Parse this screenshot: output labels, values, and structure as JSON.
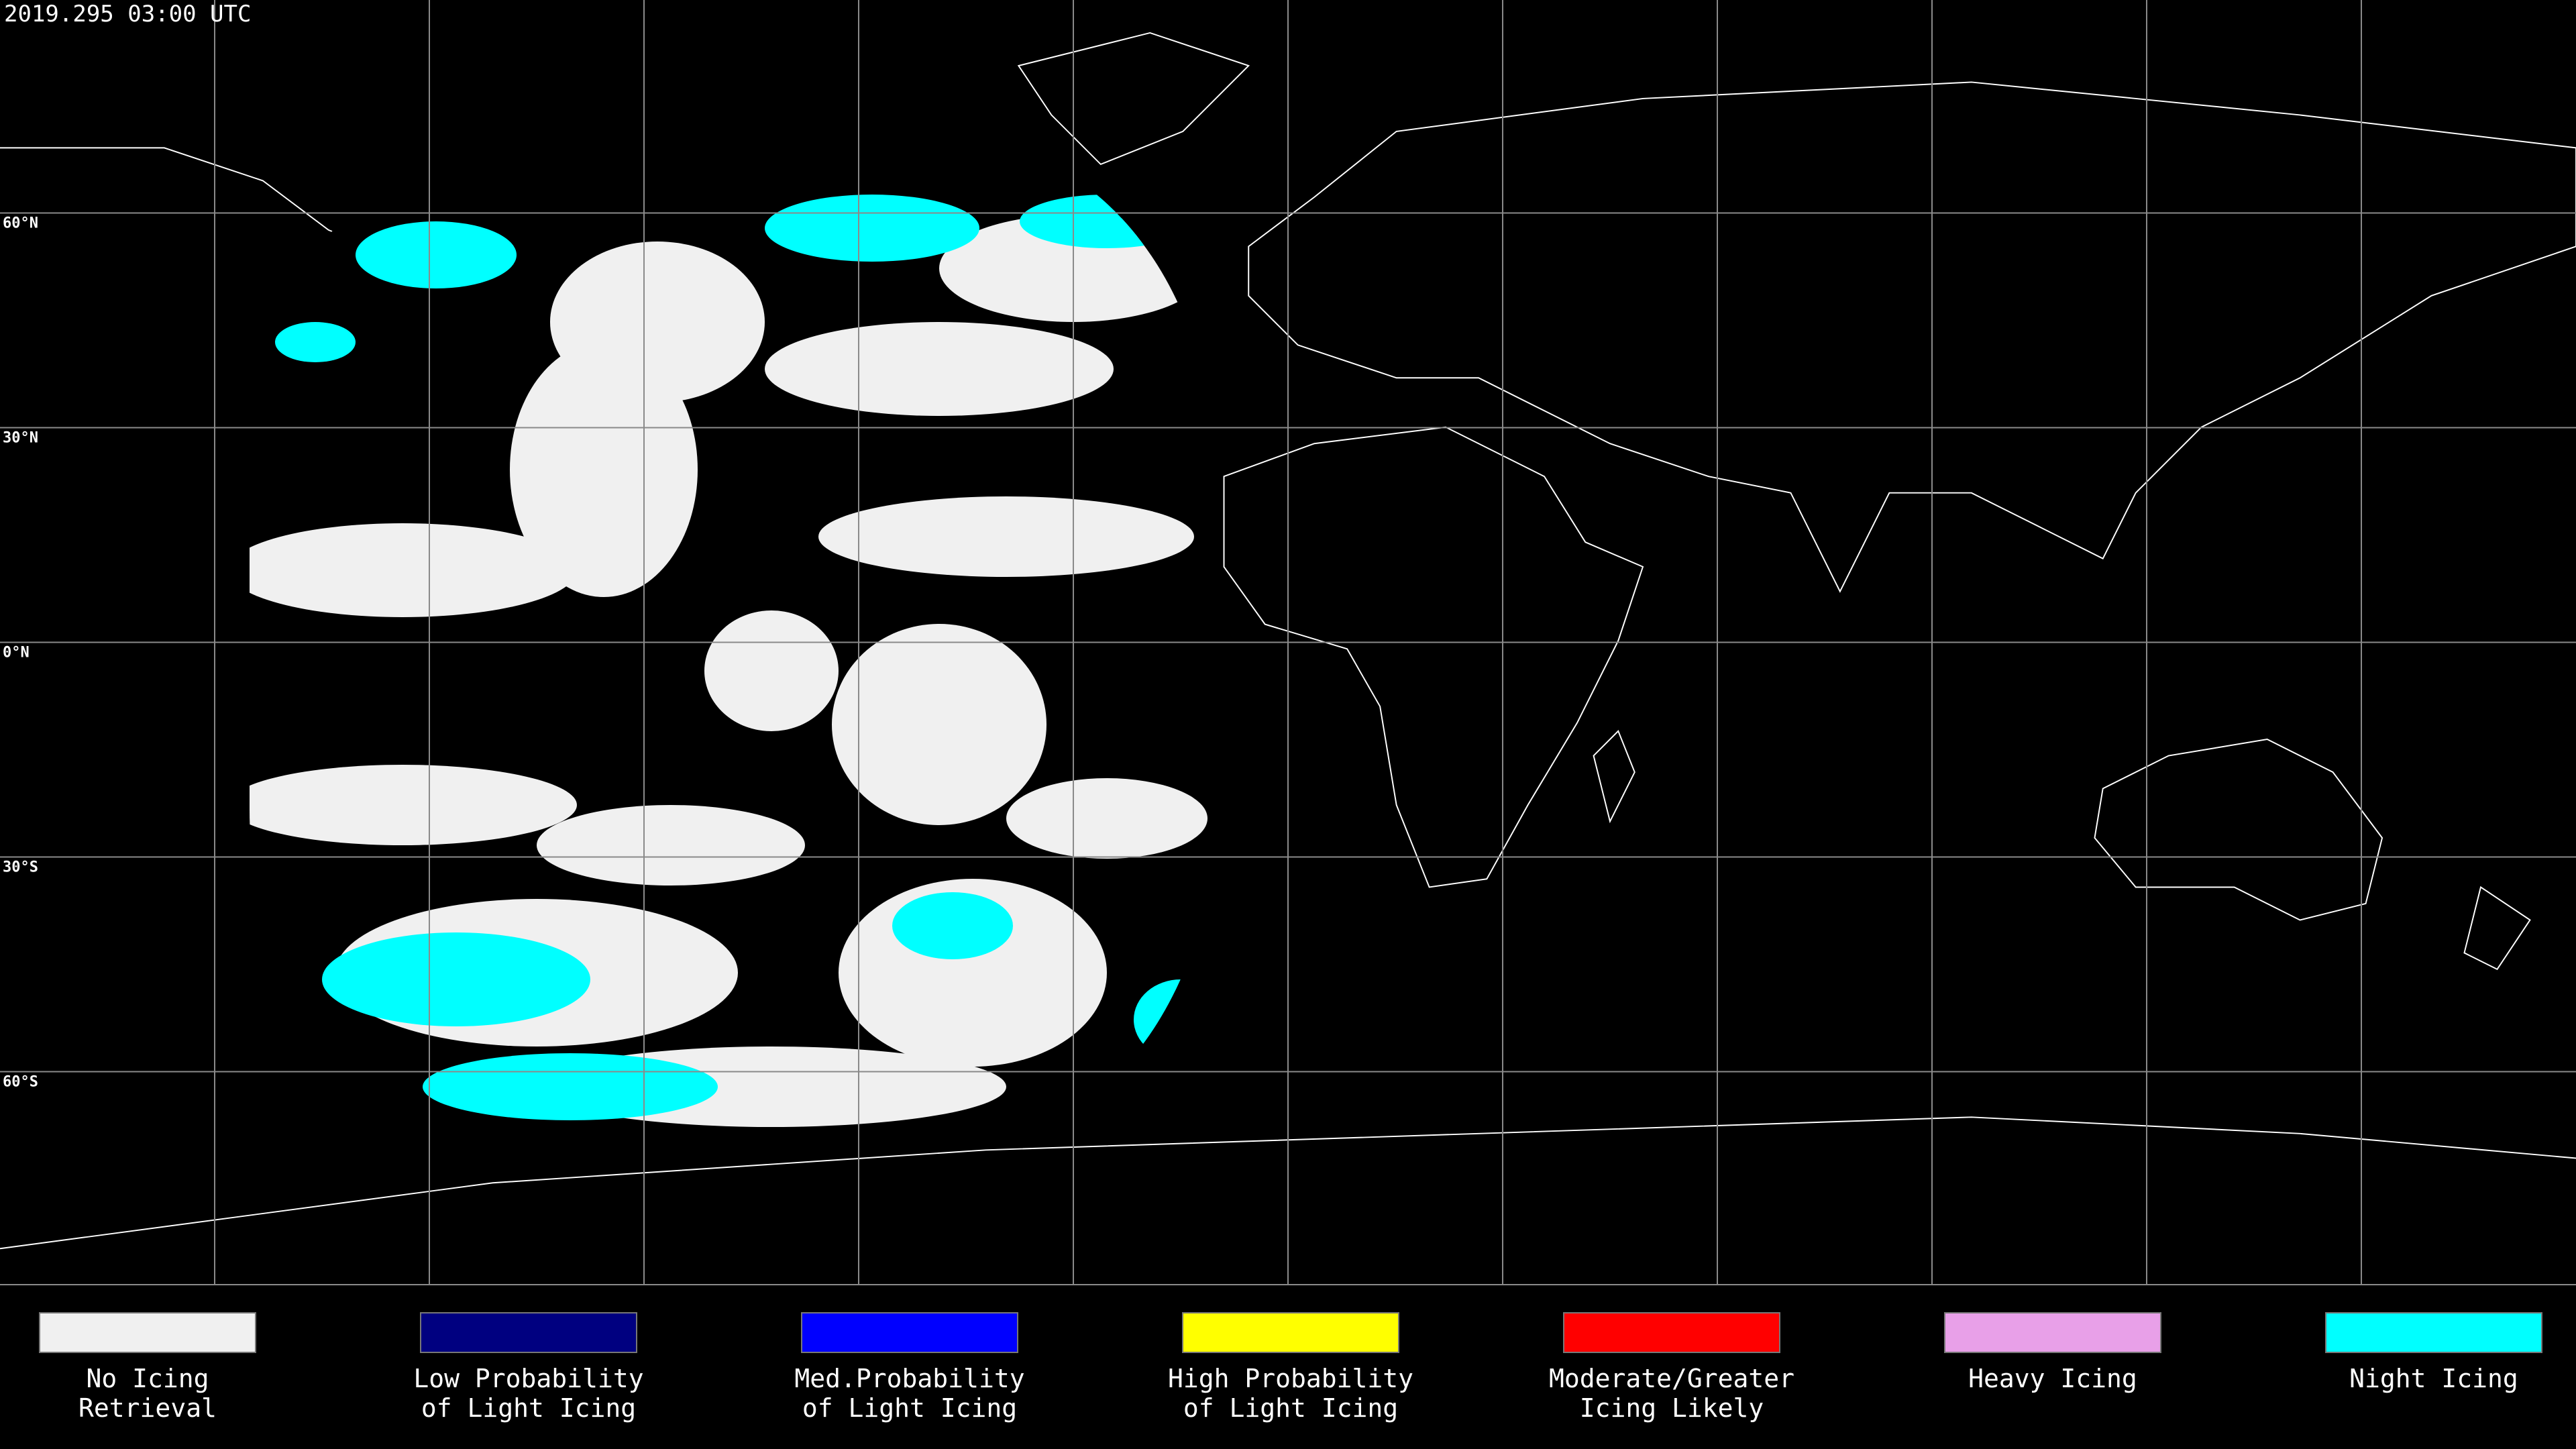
{
  "title": "2019.295 03:00 UTC",
  "lat_labels": [
    "60°N",
    "30°N",
    "0°N",
    "30°S",
    "60°S"
  ],
  "legend": [
    {
      "color": "#f0f0f0",
      "lines": [
        "No Icing",
        "Retrieval"
      ]
    },
    {
      "color": "#000080",
      "lines": [
        "Low Probability",
        "of Light Icing"
      ]
    },
    {
      "color": "#0000ff",
      "lines": [
        "Med.Probability",
        "of Light Icing"
      ]
    },
    {
      "color": "#ffff00",
      "lines": [
        "High Probability",
        "of Light Icing"
      ]
    },
    {
      "color": "#ff0000",
      "lines": [
        "Moderate/Greater",
        "Icing Likely"
      ]
    },
    {
      "color": "#e8a0e8",
      "lines": [
        "Heavy Icing"
      ]
    },
    {
      "color": "#00ffff",
      "lines": [
        "Night Icing"
      ]
    }
  ]
}
